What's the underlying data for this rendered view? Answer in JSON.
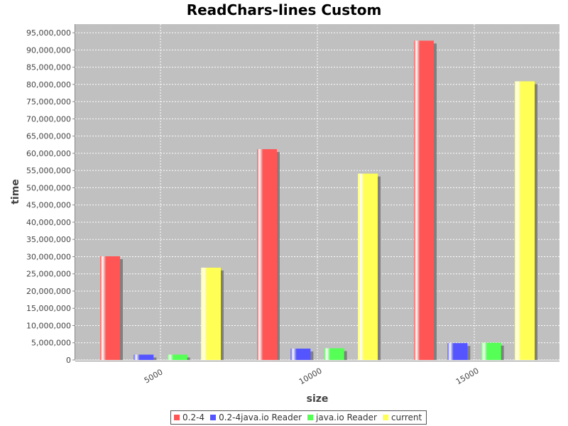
{
  "chart_data": {
    "type": "bar",
    "title": "ReadChars-lines Custom",
    "xlabel": "size",
    "ylabel": "time",
    "categories": [
      "5000",
      "10000",
      "15000"
    ],
    "ylim": [
      0,
      97500000
    ],
    "yticks": [
      0,
      5000000,
      10000000,
      15000000,
      20000000,
      25000000,
      30000000,
      35000000,
      40000000,
      45000000,
      50000000,
      55000000,
      60000000,
      65000000,
      70000000,
      75000000,
      80000000,
      85000000,
      90000000,
      95000000
    ],
    "grid": true,
    "legend_position": "bottom",
    "series": [
      {
        "name": "0.2-4",
        "color": "#ff5555",
        "values": [
          30100000,
          61200000,
          92700000
        ]
      },
      {
        "name": "0.2-4java.io Reader",
        "color": "#5555ff",
        "values": [
          1550000,
          3300000,
          4900000
        ]
      },
      {
        "name": "java.io Reader",
        "color": "#55ff55",
        "values": [
          1550000,
          3400000,
          5000000
        ]
      },
      {
        "name": "current",
        "color": "#ffff55",
        "values": [
          26800000,
          54100000,
          80900000
        ]
      }
    ]
  },
  "colors": {
    "plot_background": "#c0c0c0",
    "grid": "#ffffff",
    "shadow": "#808080"
  }
}
